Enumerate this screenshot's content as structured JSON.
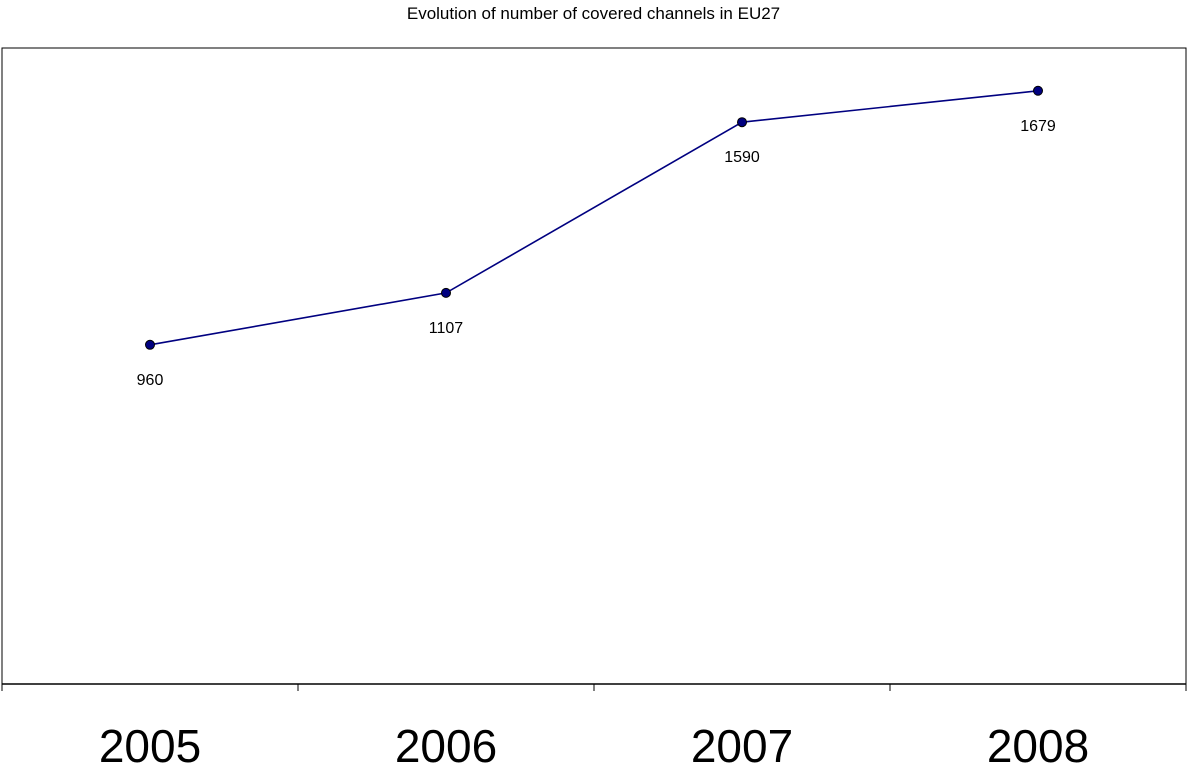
{
  "chart_data": {
    "type": "line",
    "title": "Evolution of number of covered channels in EU27",
    "categories": [
      "2005",
      "2006",
      "2007",
      "2008"
    ],
    "series": [
      {
        "values": [
          960,
          1107,
          1590,
          1679
        ]
      }
    ],
    "data_labels": [
      "960",
      "1107",
      "1590",
      "1679"
    ],
    "xlabel": "",
    "ylabel": "",
    "ylim": [
      0,
      1800
    ],
    "grid": false,
    "legend": "none",
    "colors": {
      "line": "#000080",
      "marker": "#000080",
      "marker_edge": "#000000",
      "axis": "#000000"
    }
  }
}
